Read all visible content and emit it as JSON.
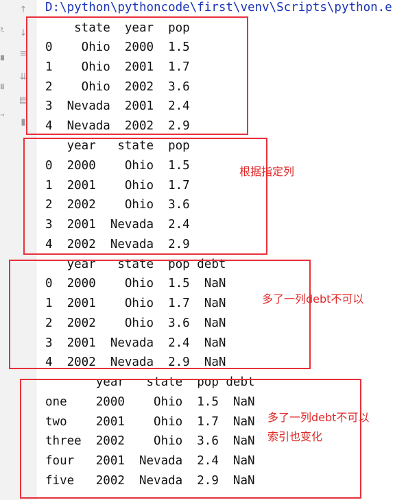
{
  "console": {
    "path": "D:\\python\\pythoncode\\first\\venv\\Scripts\\python.e"
  },
  "gutter_icons": [
    "arrow-up-icon",
    "arrow-down-icon",
    "soft-wrap-icon",
    "scroll-to-end-icon",
    "print-icon",
    "trash-icon"
  ],
  "blocks": [
    {
      "lines": [
        "    state  year  pop",
        "0    Ohio  2000  1.5",
        "1    Ohio  2001  1.7",
        "2    Ohio  2002  3.6",
        "3  Nevada  2001  2.4",
        "4  Nevada  2002  2.9"
      ]
    },
    {
      "lines": [
        "   year   state  pop",
        "0  2000    Ohio  1.5",
        "1  2001    Ohio  1.7",
        "2  2002    Ohio  3.6",
        "3  2001  Nevada  2.4",
        "4  2002  Nevada  2.9"
      ],
      "note": "根据指定列"
    },
    {
      "lines": [
        "   year   state  pop debt",
        "0  2000    Ohio  1.5  NaN",
        "1  2001    Ohio  1.7  NaN",
        "2  2002    Ohio  3.6  NaN",
        "3  2001  Nevada  2.4  NaN",
        "4  2002  Nevada  2.9  NaN"
      ],
      "note": "多了一列debt不可以"
    },
    {
      "lines": [
        "       year   state  pop debt",
        "one    2000    Ohio  1.5  NaN",
        "two    2001    Ohio  1.7  NaN",
        "three  2002    Ohio  3.6  NaN",
        "four   2001  Nevada  2.4  NaN",
        "five   2002  Nevada  2.9  NaN"
      ],
      "note_line1": "多了一列debt不可以",
      "note_line2": "索引也变化"
    }
  ],
  "colors": {
    "path": "#1a34b5",
    "annotation": "#e02828",
    "text": "#111111"
  }
}
